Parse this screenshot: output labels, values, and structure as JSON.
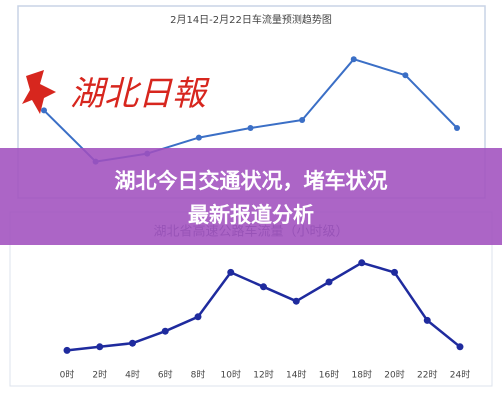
{
  "chart_data": [
    {
      "type": "line",
      "title": "2月14日-2月22日车流量预测趋势图",
      "categories": [
        null,
        null,
        null,
        null,
        null,
        null,
        null,
        null,
        null
      ],
      "series": [
        {
          "color": "#3b6fc6",
          "values": [
            56,
            24,
            29,
            39,
            45,
            50,
            88,
            78,
            45
          ]
        }
      ],
      "ylim": [
        0,
        100
      ]
    },
    {
      "type": "line",
      "title": "湖北省高速公路车流量（小时级）",
      "categories": [
        "0时",
        "2时",
        "4时",
        "6时",
        "8时",
        "10时",
        "12时",
        "14时",
        "16时",
        "18时",
        "20时",
        "22时",
        "24时"
      ],
      "series": [
        {
          "color": "#1f2b9e",
          "values": [
            8,
            11,
            14,
            24,
            36,
            73,
            61,
            49,
            65,
            81,
            73,
            33,
            11
          ]
        }
      ],
      "ylim": [
        0,
        100
      ]
    }
  ],
  "logo": "湖北日報",
  "banner": {
    "lines": [
      "湖北今日交通状况，堵车状况",
      "最新报道分析"
    ]
  }
}
